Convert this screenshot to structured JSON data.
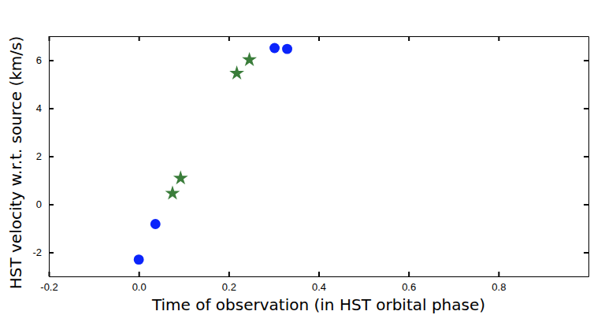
{
  "chart_data": {
    "type": "scatter",
    "x_label": "Time of observation (in HST orbital phase)",
    "y_label": "HST velocity w.r.t. source (km/s)",
    "xlim": [
      -0.2,
      1.0
    ],
    "ylim": [
      -3,
      7
    ],
    "xticks": [
      -0.2,
      {
        "value": 0,
        "label": "0.0"
      },
      0.2,
      0.4,
      0.6,
      0.8
    ],
    "yticks": [
      -2,
      0,
      2,
      4,
      6
    ],
    "series": [
      {
        "color": "#0b24fb",
        "marker": "circle",
        "x": [
          0.0,
          0.037,
          0.302,
          0.33
        ],
        "values": [
          -2.3,
          -0.82,
          6.51,
          6.47
        ]
      },
      {
        "color": "#3a7d3a",
        "marker": "star",
        "x": [
          0.075,
          0.093,
          0.218,
          0.246
        ],
        "values": [
          0.46,
          1.09,
          5.46,
          6.02
        ]
      }
    ]
  }
}
